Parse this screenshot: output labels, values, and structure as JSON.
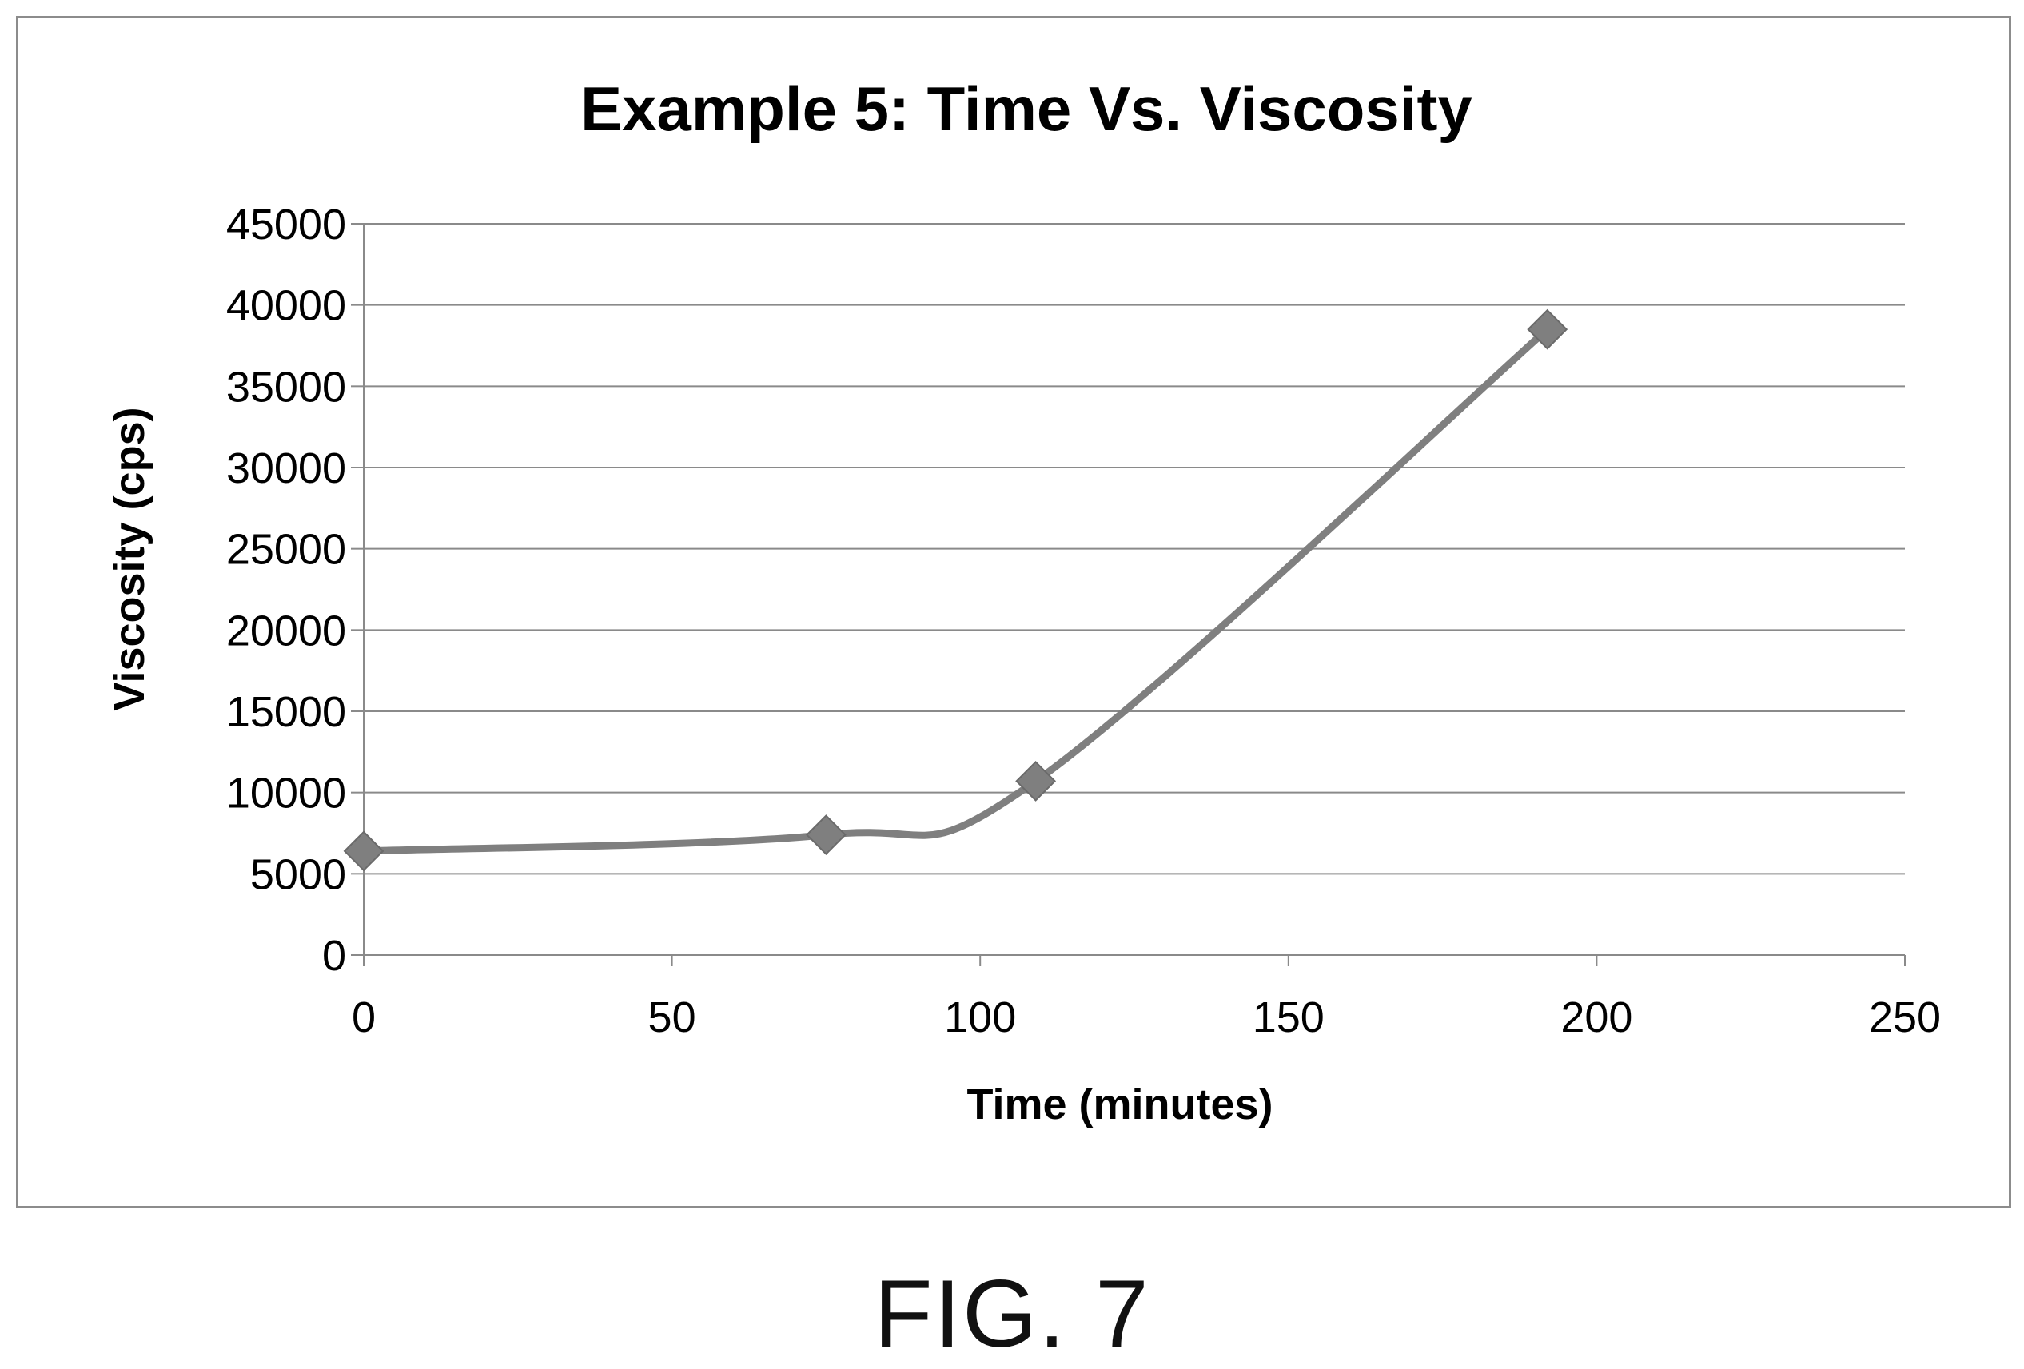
{
  "figure_label": "FIG. 7",
  "chart_data": {
    "type": "line",
    "title": "Example 5: Time Vs. Viscosity",
    "xlabel": "Time (minutes)",
    "ylabel": "Viscosity (cps)",
    "xlim": [
      0,
      250
    ],
    "ylim": [
      0,
      45000
    ],
    "xticks": [
      0,
      50,
      100,
      150,
      200,
      250
    ],
    "yticks": [
      0,
      5000,
      10000,
      15000,
      20000,
      25000,
      30000,
      35000,
      40000,
      45000
    ],
    "grid": true,
    "smooth": true,
    "marker": "diamond",
    "color": "#7f7f7f",
    "series": [
      {
        "x": [
          0,
          75,
          109,
          192
        ],
        "values": [
          6400,
          7400,
          10700,
          38500
        ]
      }
    ]
  }
}
